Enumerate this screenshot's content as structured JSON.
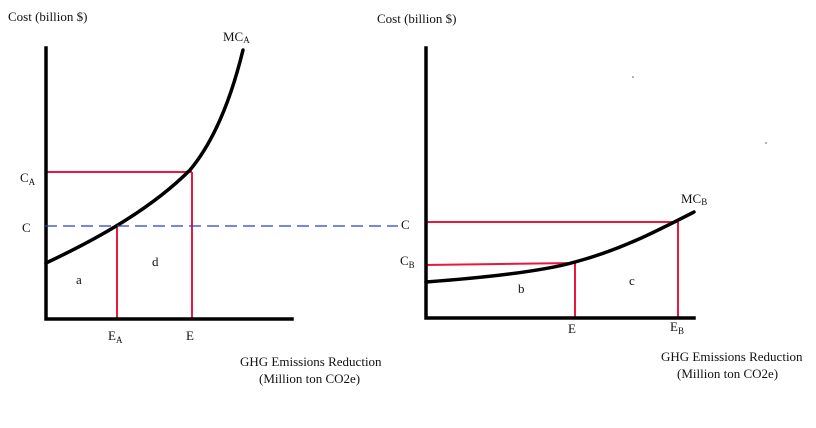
{
  "left_panel": {
    "y_axis_label": "Cost (billion $)",
    "curve_label_main": "MC",
    "curve_label_sub": "A",
    "tick_ca_main": "C",
    "tick_ca_sub": "A",
    "tick_c": "C",
    "tick_ea_main": "E",
    "tick_ea_sub": "A",
    "tick_e": "E",
    "region_a": "a",
    "region_d": "d",
    "x_axis_label_line1": "GHG Emissions Reduction",
    "x_axis_label_line2": "(Million ton CO2e)"
  },
  "right_panel": {
    "y_axis_label": "Cost (billion $)",
    "curve_label_main": "MC",
    "curve_label_sub": "B",
    "tick_c": "C",
    "tick_cb_main": "C",
    "tick_cb_sub": "B",
    "tick_e": "E",
    "tick_eb_main": "E",
    "tick_eb_sub": "B",
    "region_b": "b",
    "region_c": "c",
    "x_axis_label_line1": "GHG Emissions Reduction",
    "x_axis_label_line2": "(Million ton CO2e)"
  },
  "colors": {
    "axis": "#000000",
    "guide_lines": "#e8193c",
    "dashed_link": "#2a40c8"
  }
}
